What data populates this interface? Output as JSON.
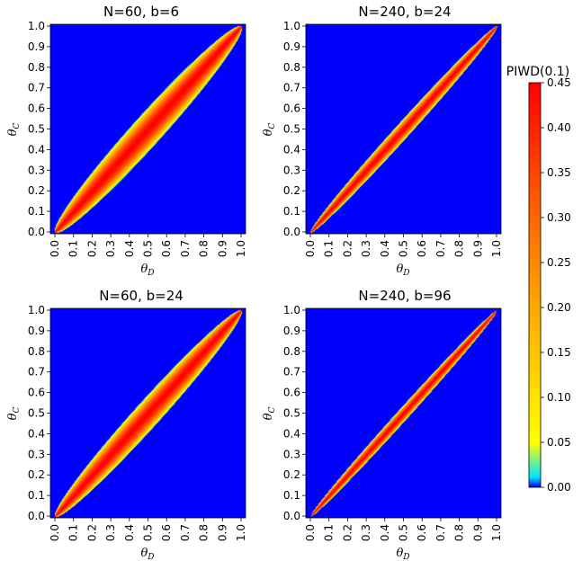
{
  "chart_data": [
    {
      "type": "heatmap",
      "title": "N=60, b=6",
      "xlabel": "θD",
      "ylabel": "θC",
      "xlim": [
        0.0,
        1.0
      ],
      "ylim": [
        0.0,
        1.0
      ],
      "xticks": [
        "0.0",
        "0.1",
        "0.2",
        "0.3",
        "0.4",
        "0.5",
        "0.6",
        "0.7",
        "0.8",
        "0.9",
        "1.0"
      ],
      "yticks": [
        "0.0",
        "0.1",
        "0.2",
        "0.3",
        "0.4",
        "0.5",
        "0.6",
        "0.7",
        "0.8",
        "0.9",
        "1.0"
      ],
      "band_width": 0.22,
      "peak_value": 0.45
    },
    {
      "type": "heatmap",
      "title": "N=240, b=24",
      "xlabel": "θD",
      "ylabel": "θC",
      "xlim": [
        0.0,
        1.0
      ],
      "ylim": [
        0.0,
        1.0
      ],
      "xticks": [
        "0.0",
        "0.1",
        "0.2",
        "0.3",
        "0.4",
        "0.5",
        "0.6",
        "0.7",
        "0.8",
        "0.9",
        "1.0"
      ],
      "yticks": [
        "0.0",
        "0.1",
        "0.2",
        "0.3",
        "0.4",
        "0.5",
        "0.6",
        "0.7",
        "0.8",
        "0.9",
        "1.0"
      ],
      "band_width": 0.11,
      "peak_value": 0.45
    },
    {
      "type": "heatmap",
      "title": "N=60, b=24",
      "xlabel": "θD",
      "ylabel": "θC",
      "xlim": [
        0.0,
        1.0
      ],
      "ylim": [
        0.0,
        1.0
      ],
      "xticks": [
        "0.0",
        "0.1",
        "0.2",
        "0.3",
        "0.4",
        "0.5",
        "0.6",
        "0.7",
        "0.8",
        "0.9",
        "1.0"
      ],
      "yticks": [
        "0.0",
        "0.1",
        "0.2",
        "0.3",
        "0.4",
        "0.5",
        "0.6",
        "0.7",
        "0.8",
        "0.9",
        "1.0"
      ],
      "band_width": 0.19,
      "peak_value": 0.45
    },
    {
      "type": "heatmap",
      "title": "N=240, b=96",
      "xlabel": "θD",
      "ylabel": "θC",
      "xlim": [
        0.0,
        1.0
      ],
      "ylim": [
        0.0,
        1.0
      ],
      "xticks": [
        "0.0",
        "0.1",
        "0.2",
        "0.3",
        "0.4",
        "0.5",
        "0.6",
        "0.7",
        "0.8",
        "0.9",
        "1.0"
      ],
      "yticks": [
        "0.0",
        "0.1",
        "0.2",
        "0.3",
        "0.4",
        "0.5",
        "0.6",
        "0.7",
        "0.8",
        "0.9",
        "1.0"
      ],
      "band_width": 0.085,
      "peak_value": 0.45
    }
  ],
  "colorbar": {
    "title": "PIWD(0.1)",
    "ticks": [
      "0.00",
      "0.05",
      "0.10",
      "0.15",
      "0.20",
      "0.25",
      "0.30",
      "0.35",
      "0.40",
      "0.45"
    ],
    "range": [
      0.0,
      0.45
    ],
    "colors": [
      "#0000ff",
      "#00ffff",
      "#ffff00",
      "#ff8000",
      "#ff0000"
    ]
  }
}
